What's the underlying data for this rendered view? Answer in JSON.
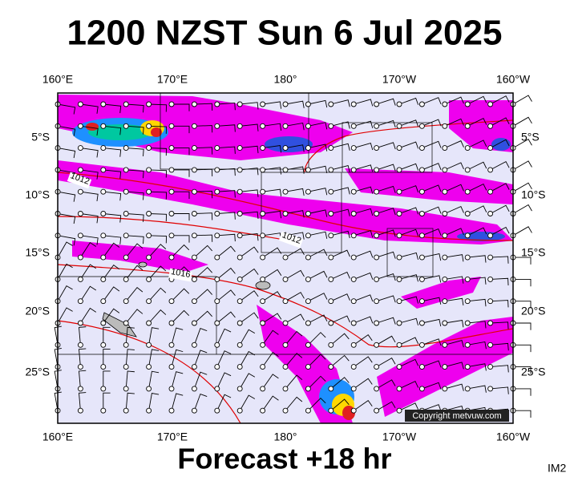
{
  "title": "1200 NZST Sun 6 Jul 2025",
  "top_labels": [
    "160°E",
    "170°E",
    "180°",
    "170°W",
    "160°W"
  ],
  "bottom_labels": [
    "160°E",
    "170°E",
    "180°",
    "170°W",
    "160°W"
  ],
  "left_labels": [
    "5°S",
    "10°S",
    "15°S",
    "20°S",
    "25°S"
  ],
  "right_labels": [
    "5°S",
    "10°S",
    "15°S",
    "20°S",
    "25°S"
  ],
  "isobar_labels": [
    "1012",
    "1012",
    "1016"
  ],
  "copyright": "Copyright metvuw.com",
  "footer": "Forecast +18 hr",
  "corner_label": "IM2"
}
